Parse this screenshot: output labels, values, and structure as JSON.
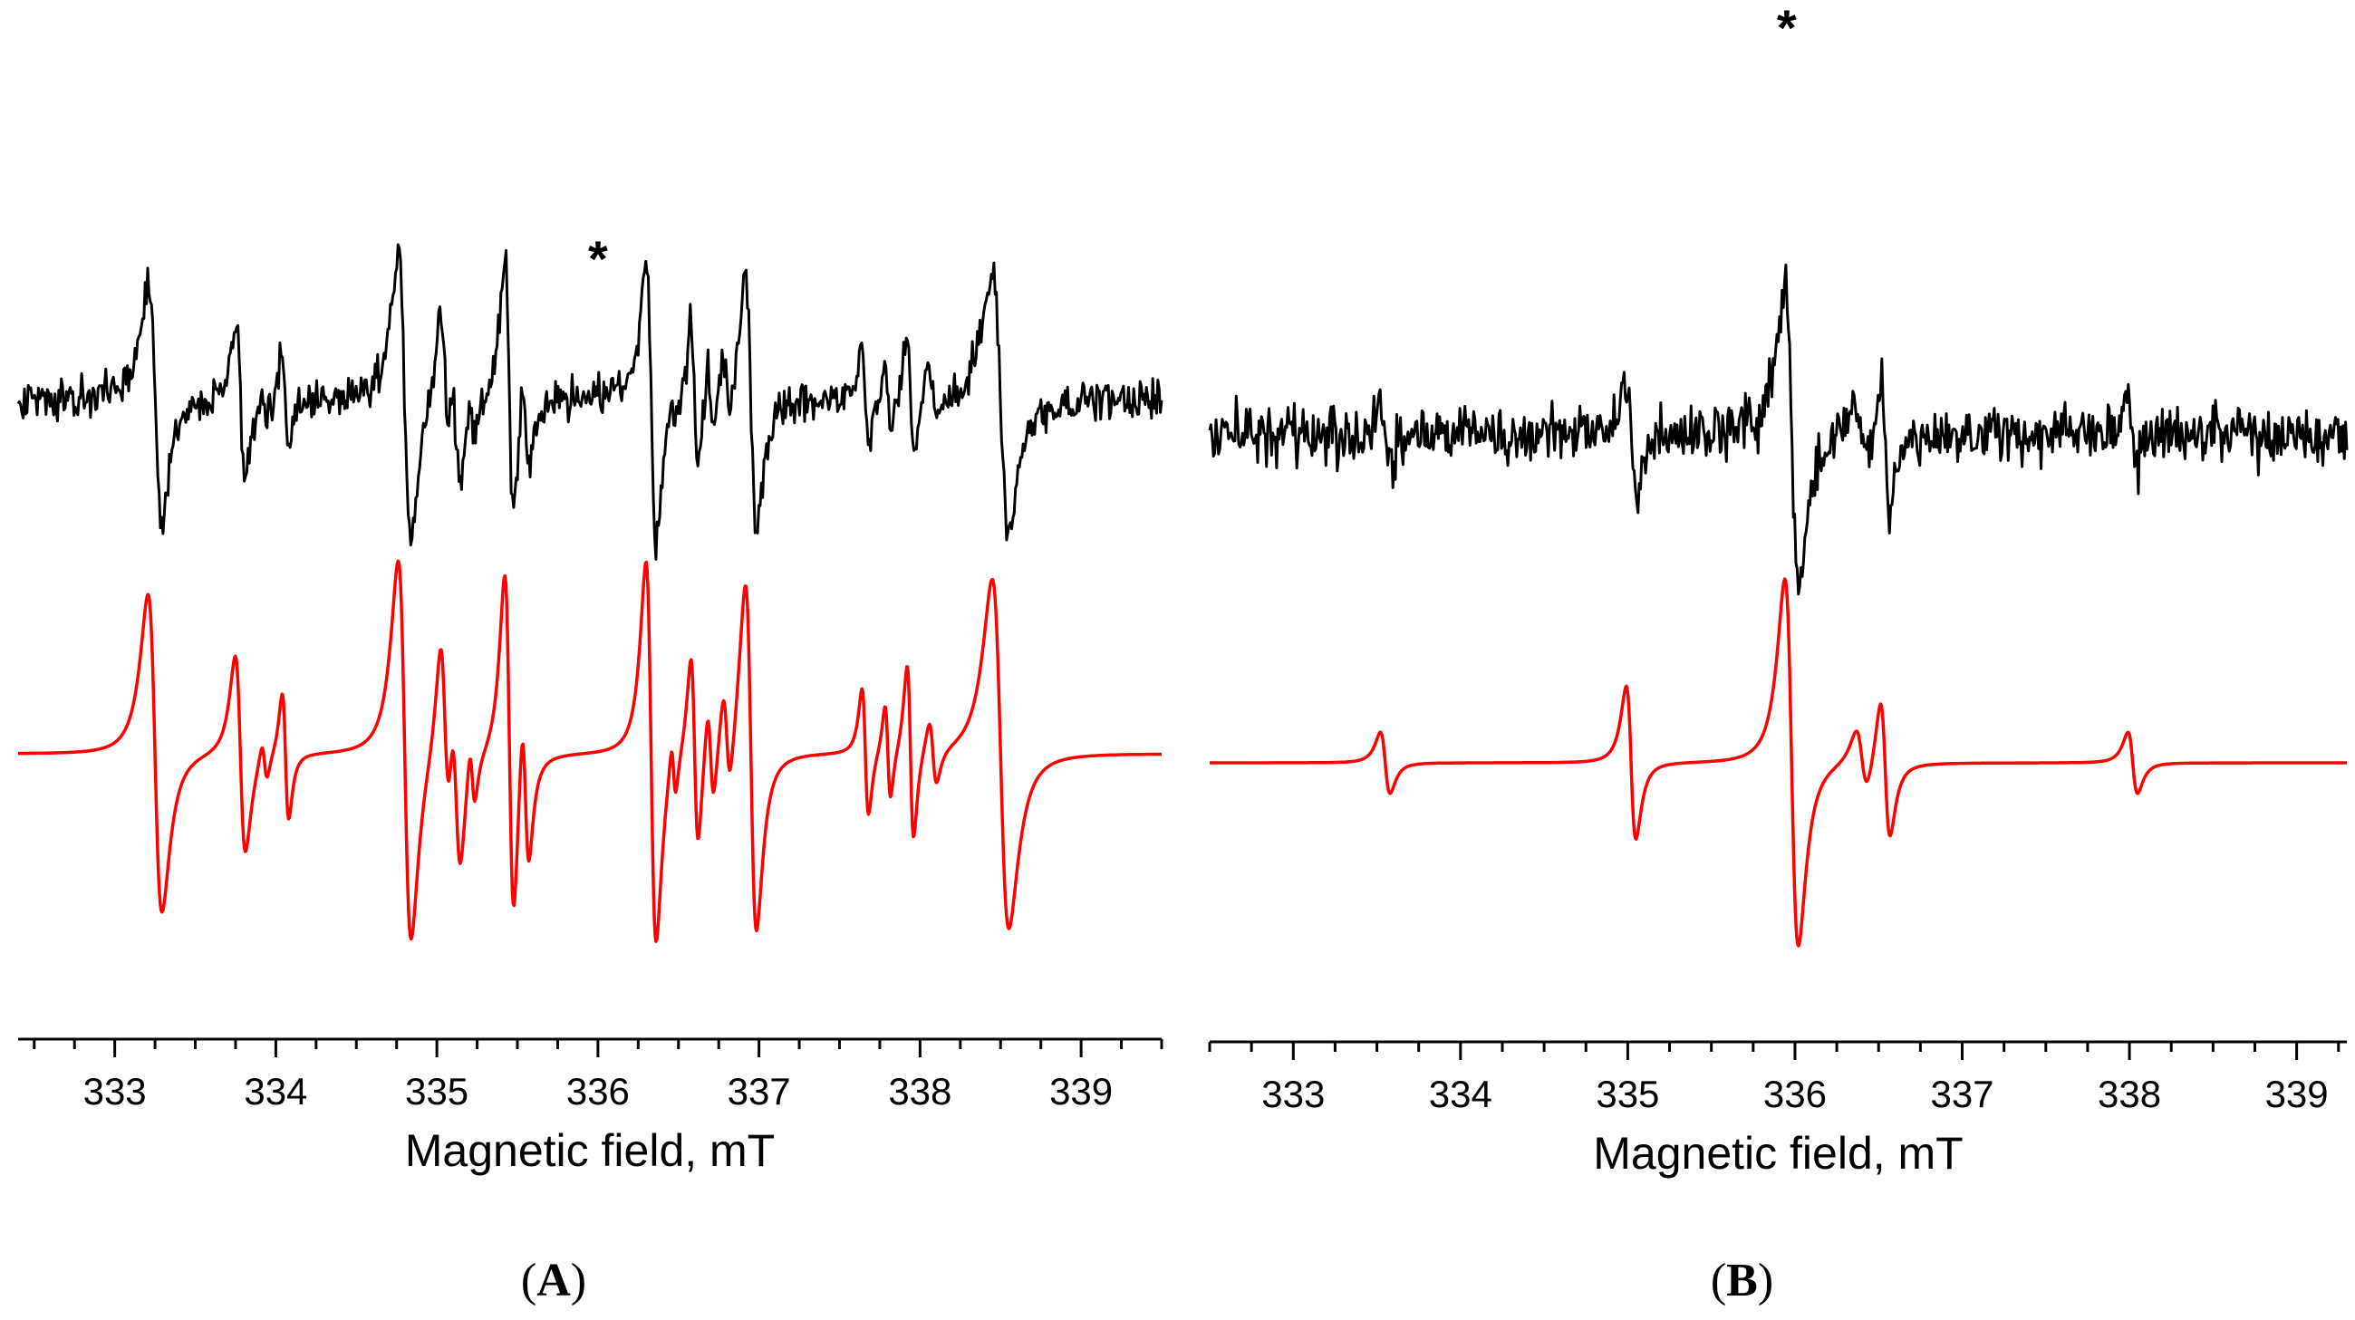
{
  "colors": {
    "experimental": "#000000",
    "simulated": "#ff0000",
    "axis": "#000000"
  },
  "chart_data": [
    {
      "id": "A",
      "type": "line",
      "panel_label_open": "(",
      "panel_label": "A",
      "panel_label_close": ")",
      "xlabel": "Magnetic field, mT",
      "xlim": [
        332.4,
        339.5
      ],
      "xticks": [
        333,
        334,
        335,
        336,
        337,
        338,
        339
      ],
      "minor_tick_step": 0.25,
      "y_axis_shown": false,
      "star_annotation": {
        "text": "*",
        "x": 336.0
      },
      "lines": [
        {
          "key": "exp",
          "style": "noisy",
          "color_key": "experimental"
        },
        {
          "key": "sim",
          "style": "smooth",
          "color_key": "simulated"
        }
      ],
      "spectral_lines": [
        {
          "x": 333.25,
          "amp": 1.0,
          "width": 0.075
        },
        {
          "x": 333.78,
          "amp": 0.62,
          "width": 0.055
        },
        {
          "x": 333.93,
          "amp": 0.12,
          "width": 0.03
        },
        {
          "x": 334.06,
          "amp": 0.4,
          "width": 0.035
        },
        {
          "x": 334.8,
          "amp": 1.2,
          "width": 0.07
        },
        {
          "x": 335.05,
          "amp": 0.6,
          "width": 0.05
        },
        {
          "x": 335.12,
          "amp": 0.55,
          "width": 0.05
        },
        {
          "x": 335.22,
          "amp": 0.2,
          "width": 0.03
        },
        {
          "x": 335.45,
          "amp": 1.1,
          "width": 0.05
        },
        {
          "x": 335.55,
          "amp": 0.5,
          "width": 0.04
        },
        {
          "x": 336.33,
          "amp": 1.2,
          "width": 0.055
        },
        {
          "x": 336.47,
          "amp": 0.18,
          "width": 0.025
        },
        {
          "x": 336.6,
          "amp": 0.6,
          "width": 0.04
        },
        {
          "x": 336.7,
          "amp": 0.3,
          "width": 0.035
        },
        {
          "x": 336.8,
          "amp": 0.3,
          "width": 0.04
        },
        {
          "x": 336.95,
          "amp": 1.1,
          "width": 0.06
        },
        {
          "x": 337.66,
          "amp": 0.4,
          "width": 0.035
        },
        {
          "x": 337.8,
          "amp": 0.3,
          "width": 0.03
        },
        {
          "x": 337.94,
          "amp": 0.55,
          "width": 0.035
        },
        {
          "x": 338.08,
          "amp": 0.2,
          "width": 0.04
        },
        {
          "x": 338.5,
          "amp": 1.1,
          "width": 0.09
        }
      ]
    },
    {
      "id": "B",
      "type": "line",
      "panel_label_open": "(",
      "panel_label": "B",
      "panel_label_close": ")",
      "xlabel": "Magnetic field, mT",
      "xlim": [
        332.5,
        339.3
      ],
      "xticks": [
        333,
        334,
        335,
        336,
        337,
        338,
        339
      ],
      "minor_tick_step": 0.25,
      "y_axis_shown": false,
      "star_annotation": {
        "text": "*",
        "x": 335.95
      },
      "lines": [
        {
          "key": "exp",
          "style": "noisy",
          "color_key": "experimental"
        },
        {
          "key": "sim",
          "style": "smooth",
          "color_key": "simulated"
        }
      ],
      "spectral_lines": [
        {
          "x": 333.55,
          "amp": 0.2,
          "width": 0.05
        },
        {
          "x": 335.02,
          "amp": 0.5,
          "width": 0.05
        },
        {
          "x": 335.98,
          "amp": 1.2,
          "width": 0.07
        },
        {
          "x": 336.4,
          "amp": 0.2,
          "width": 0.06
        },
        {
          "x": 336.54,
          "amp": 0.45,
          "width": 0.05
        },
        {
          "x": 338.02,
          "amp": 0.2,
          "width": 0.05
        }
      ]
    }
  ]
}
